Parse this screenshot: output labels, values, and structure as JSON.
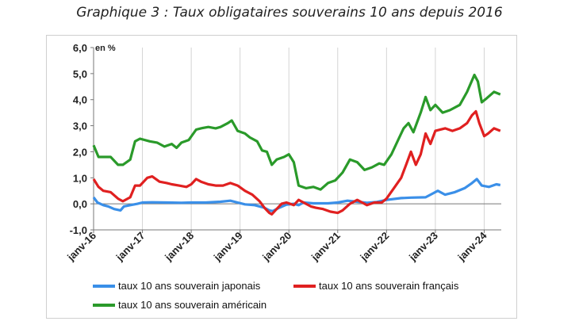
{
  "title": "Graphique 3 : Taux obligataires souverains 10 ans depuis 2016",
  "colors": {
    "japan": "#3a8fe8",
    "france": "#e02020",
    "usa": "#2a9a2a",
    "grid": "#d4d4d4",
    "axis": "#777777"
  },
  "chart_data": {
    "type": "line",
    "title": "Graphique 3 : Taux obligataires souverains 10 ans depuis 2016",
    "unit_label": "en %",
    "ylim": [
      -1.0,
      6.0
    ],
    "yticks": [
      "-1,0",
      "0,0",
      "1,0",
      "2,0",
      "3,0",
      "4,0",
      "5,0",
      "6,0"
    ],
    "ytick_values": [
      -1,
      0,
      1,
      2,
      3,
      4,
      5,
      6
    ],
    "xlim": [
      2016.0,
      2024.35
    ],
    "xticks": [
      "janv-16",
      "janv-17",
      "janv-18",
      "janv-19",
      "janv-20",
      "janv-21",
      "janv-22",
      "janv-23",
      "janv-24"
    ],
    "xtick_values": [
      2016,
      2017,
      2018,
      2019,
      2020,
      2021,
      2022,
      2023,
      2024
    ],
    "grid": "vertical",
    "legend_position": "bottom",
    "series": [
      {
        "name": "taux 10 ans souverain japonais",
        "color": "#3a8fe8",
        "points": [
          [
            2016.0,
            0.25
          ],
          [
            2016.08,
            0.05
          ],
          [
            2016.2,
            -0.05
          ],
          [
            2016.3,
            -0.1
          ],
          [
            2016.42,
            -0.2
          ],
          [
            2016.55,
            -0.25
          ],
          [
            2016.62,
            -0.1
          ],
          [
            2016.75,
            -0.05
          ],
          [
            2016.9,
            0.0
          ],
          [
            2017.0,
            0.05
          ],
          [
            2017.2,
            0.06
          ],
          [
            2017.5,
            0.05
          ],
          [
            2017.8,
            0.04
          ],
          [
            2018.0,
            0.05
          ],
          [
            2018.3,
            0.05
          ],
          [
            2018.6,
            0.08
          ],
          [
            2018.8,
            0.12
          ],
          [
            2018.95,
            0.05
          ],
          [
            2019.1,
            -0.02
          ],
          [
            2019.3,
            -0.05
          ],
          [
            2019.5,
            -0.15
          ],
          [
            2019.6,
            -0.25
          ],
          [
            2019.67,
            -0.28
          ],
          [
            2019.8,
            -0.15
          ],
          [
            2019.95,
            -0.03
          ],
          [
            2020.1,
            0.0
          ],
          [
            2020.2,
            -0.05
          ],
          [
            2020.3,
            0.05
          ],
          [
            2020.5,
            0.02
          ],
          [
            2020.8,
            0.02
          ],
          [
            2021.0,
            0.05
          ],
          [
            2021.2,
            0.12
          ],
          [
            2021.4,
            0.08
          ],
          [
            2021.6,
            0.04
          ],
          [
            2021.8,
            0.07
          ],
          [
            2022.0,
            0.15
          ],
          [
            2022.3,
            0.22
          ],
          [
            2022.5,
            0.24
          ],
          [
            2022.8,
            0.25
          ],
          [
            2022.95,
            0.4
          ],
          [
            2023.05,
            0.5
          ],
          [
            2023.2,
            0.35
          ],
          [
            2023.4,
            0.45
          ],
          [
            2023.6,
            0.6
          ],
          [
            2023.75,
            0.8
          ],
          [
            2023.85,
            0.95
          ],
          [
            2023.95,
            0.7
          ],
          [
            2024.1,
            0.65
          ],
          [
            2024.25,
            0.75
          ],
          [
            2024.33,
            0.72
          ]
        ]
      },
      {
        "name": "taux 10 ans souverain français",
        "color": "#e02020",
        "points": [
          [
            2016.0,
            0.95
          ],
          [
            2016.1,
            0.65
          ],
          [
            2016.2,
            0.5
          ],
          [
            2016.35,
            0.45
          ],
          [
            2016.5,
            0.2
          ],
          [
            2016.6,
            0.1
          ],
          [
            2016.75,
            0.25
          ],
          [
            2016.85,
            0.7
          ],
          [
            2016.95,
            0.7
          ],
          [
            2017.1,
            1.0
          ],
          [
            2017.2,
            1.05
          ],
          [
            2017.35,
            0.85
          ],
          [
            2017.5,
            0.8
          ],
          [
            2017.6,
            0.75
          ],
          [
            2017.75,
            0.7
          ],
          [
            2017.9,
            0.65
          ],
          [
            2018.0,
            0.75
          ],
          [
            2018.1,
            0.95
          ],
          [
            2018.2,
            0.85
          ],
          [
            2018.35,
            0.75
          ],
          [
            2018.5,
            0.7
          ],
          [
            2018.65,
            0.7
          ],
          [
            2018.8,
            0.8
          ],
          [
            2018.95,
            0.7
          ],
          [
            2019.1,
            0.5
          ],
          [
            2019.25,
            0.35
          ],
          [
            2019.4,
            0.1
          ],
          [
            2019.5,
            -0.15
          ],
          [
            2019.6,
            -0.35
          ],
          [
            2019.65,
            -0.4
          ],
          [
            2019.75,
            -0.2
          ],
          [
            2019.85,
            0.0
          ],
          [
            2019.95,
            0.05
          ],
          [
            2020.1,
            -0.05
          ],
          [
            2020.2,
            0.15
          ],
          [
            2020.3,
            0.05
          ],
          [
            2020.45,
            -0.1
          ],
          [
            2020.55,
            -0.15
          ],
          [
            2020.7,
            -0.2
          ],
          [
            2020.85,
            -0.3
          ],
          [
            2021.0,
            -0.35
          ],
          [
            2021.1,
            -0.25
          ],
          [
            2021.25,
            0.0
          ],
          [
            2021.4,
            0.15
          ],
          [
            2021.5,
            0.05
          ],
          [
            2021.6,
            -0.05
          ],
          [
            2021.75,
            0.05
          ],
          [
            2021.9,
            0.05
          ],
          [
            2022.0,
            0.2
          ],
          [
            2022.15,
            0.6
          ],
          [
            2022.3,
            1.0
          ],
          [
            2022.4,
            1.5
          ],
          [
            2022.5,
            2.0
          ],
          [
            2022.6,
            1.5
          ],
          [
            2022.7,
            1.9
          ],
          [
            2022.8,
            2.7
          ],
          [
            2022.9,
            2.3
          ],
          [
            2023.0,
            2.8
          ],
          [
            2023.2,
            2.9
          ],
          [
            2023.35,
            2.8
          ],
          [
            2023.5,
            2.9
          ],
          [
            2023.65,
            3.1
          ],
          [
            2023.75,
            3.4
          ],
          [
            2023.83,
            3.55
          ],
          [
            2023.9,
            3.1
          ],
          [
            2024.0,
            2.6
          ],
          [
            2024.08,
            2.7
          ],
          [
            2024.2,
            2.9
          ],
          [
            2024.33,
            2.8
          ]
        ]
      },
      {
        "name": "taux 10 ans souverain américain",
        "color": "#2a9a2a",
        "points": [
          [
            2016.0,
            2.25
          ],
          [
            2016.1,
            1.8
          ],
          [
            2016.2,
            1.8
          ],
          [
            2016.35,
            1.8
          ],
          [
            2016.5,
            1.5
          ],
          [
            2016.6,
            1.5
          ],
          [
            2016.75,
            1.7
          ],
          [
            2016.85,
            2.4
          ],
          [
            2016.95,
            2.5
          ],
          [
            2017.15,
            2.4
          ],
          [
            2017.3,
            2.35
          ],
          [
            2017.45,
            2.2
          ],
          [
            2017.6,
            2.3
          ],
          [
            2017.7,
            2.15
          ],
          [
            2017.8,
            2.35
          ],
          [
            2017.95,
            2.45
          ],
          [
            2018.1,
            2.85
          ],
          [
            2018.2,
            2.9
          ],
          [
            2018.35,
            2.95
          ],
          [
            2018.5,
            2.9
          ],
          [
            2018.6,
            2.95
          ],
          [
            2018.75,
            3.1
          ],
          [
            2018.83,
            3.2
          ],
          [
            2018.95,
            2.8
          ],
          [
            2019.1,
            2.7
          ],
          [
            2019.2,
            2.55
          ],
          [
            2019.35,
            2.4
          ],
          [
            2019.45,
            2.05
          ],
          [
            2019.55,
            2.0
          ],
          [
            2019.65,
            1.5
          ],
          [
            2019.75,
            1.7
          ],
          [
            2019.9,
            1.8
          ],
          [
            2020.0,
            1.9
          ],
          [
            2020.1,
            1.6
          ],
          [
            2020.2,
            0.7
          ],
          [
            2020.35,
            0.6
          ],
          [
            2020.5,
            0.65
          ],
          [
            2020.65,
            0.55
          ],
          [
            2020.8,
            0.8
          ],
          [
            2020.95,
            0.9
          ],
          [
            2021.1,
            1.2
          ],
          [
            2021.25,
            1.7
          ],
          [
            2021.4,
            1.6
          ],
          [
            2021.55,
            1.3
          ],
          [
            2021.7,
            1.4
          ],
          [
            2021.85,
            1.55
          ],
          [
            2021.95,
            1.5
          ],
          [
            2022.1,
            1.9
          ],
          [
            2022.25,
            2.5
          ],
          [
            2022.35,
            2.9
          ],
          [
            2022.45,
            3.1
          ],
          [
            2022.55,
            2.75
          ],
          [
            2022.7,
            3.5
          ],
          [
            2022.8,
            4.1
          ],
          [
            2022.9,
            3.6
          ],
          [
            2023.0,
            3.8
          ],
          [
            2023.15,
            3.5
          ],
          [
            2023.3,
            3.6
          ],
          [
            2023.5,
            3.8
          ],
          [
            2023.65,
            4.3
          ],
          [
            2023.8,
            4.95
          ],
          [
            2023.87,
            4.7
          ],
          [
            2023.95,
            3.9
          ],
          [
            2024.05,
            4.05
          ],
          [
            2024.2,
            4.3
          ],
          [
            2024.33,
            4.2
          ]
        ]
      }
    ]
  }
}
